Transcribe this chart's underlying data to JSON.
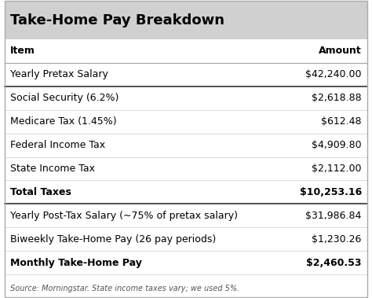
{
  "title": "Take-Home Pay Breakdown",
  "header": [
    "Item",
    "Amount"
  ],
  "rows": [
    {
      "label": "Yearly Pretax Salary",
      "amount": "$42,240.00",
      "bold": false,
      "separator_after": true
    },
    {
      "label": "Social Security (6.2%)",
      "amount": "$2,618.88",
      "bold": false,
      "separator_after": false
    },
    {
      "label": "Medicare Tax (1.45%)",
      "amount": "$612.48",
      "bold": false,
      "separator_after": false
    },
    {
      "label": "Federal Income Tax",
      "amount": "$4,909.80",
      "bold": false,
      "separator_after": false
    },
    {
      "label": "State Income Tax",
      "amount": "$2,112.00",
      "bold": false,
      "separator_after": false
    },
    {
      "label": "Total Taxes",
      "amount": "$10,253.16",
      "bold": true,
      "separator_after": true
    },
    {
      "label": "Yearly Post-Tax Salary (∼75% of pretax salary)",
      "amount": "$31,986.84",
      "bold": false,
      "separator_after": false
    },
    {
      "label": "Biweekly Take-Home Pay (26 pay periods)",
      "amount": "$1,230.26",
      "bold": false,
      "separator_after": false
    },
    {
      "label": "Monthly Take-Home Pay",
      "amount": "$2,460.53",
      "bold": true,
      "separator_after": false
    }
  ],
  "footer": "Source: Morningstar. State income taxes vary; we used 5%.",
  "bg_color": "#ffffff",
  "title_fontsize": 13,
  "header_fontsize": 9,
  "row_fontsize": 9,
  "footer_fontsize": 7,
  "separator_color": "#999999",
  "thick_separator_color": "#333333",
  "light_separator_color": "#cccccc",
  "title_bg": "#d0d0d0"
}
